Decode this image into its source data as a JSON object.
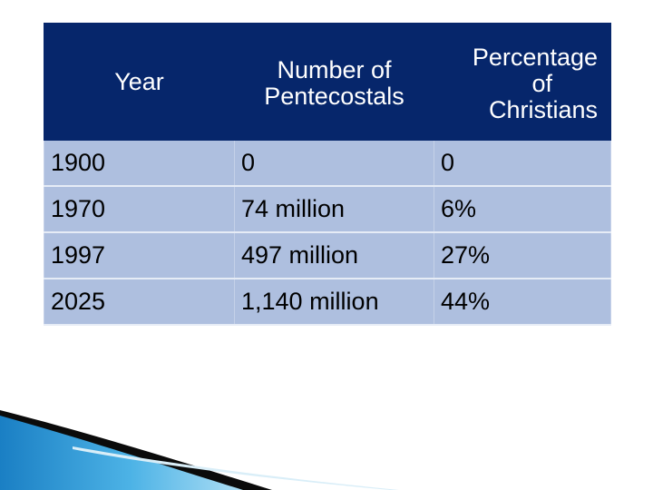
{
  "table": {
    "headers": {
      "year": "Year",
      "pentecostals": [
        "Number of",
        "Pentecostals"
      ],
      "percentage": [
        "Percentage",
        "of",
        "Christians"
      ]
    },
    "rows": [
      {
        "year": "1900",
        "count": "0",
        "percent": "0"
      },
      {
        "year": "1970",
        "count": "74 million",
        "percent": "6%"
      },
      {
        "year": "1997",
        "count": "497 million",
        "percent": "27%"
      },
      {
        "year": "2025",
        "count": "1,140 million",
        "percent": "44%"
      }
    ]
  },
  "colors": {
    "header_bg": "#06266b",
    "cell_bg": "#aebfdf",
    "accent_blue": "#1f8fd0",
    "accent_dark": "#000000"
  }
}
